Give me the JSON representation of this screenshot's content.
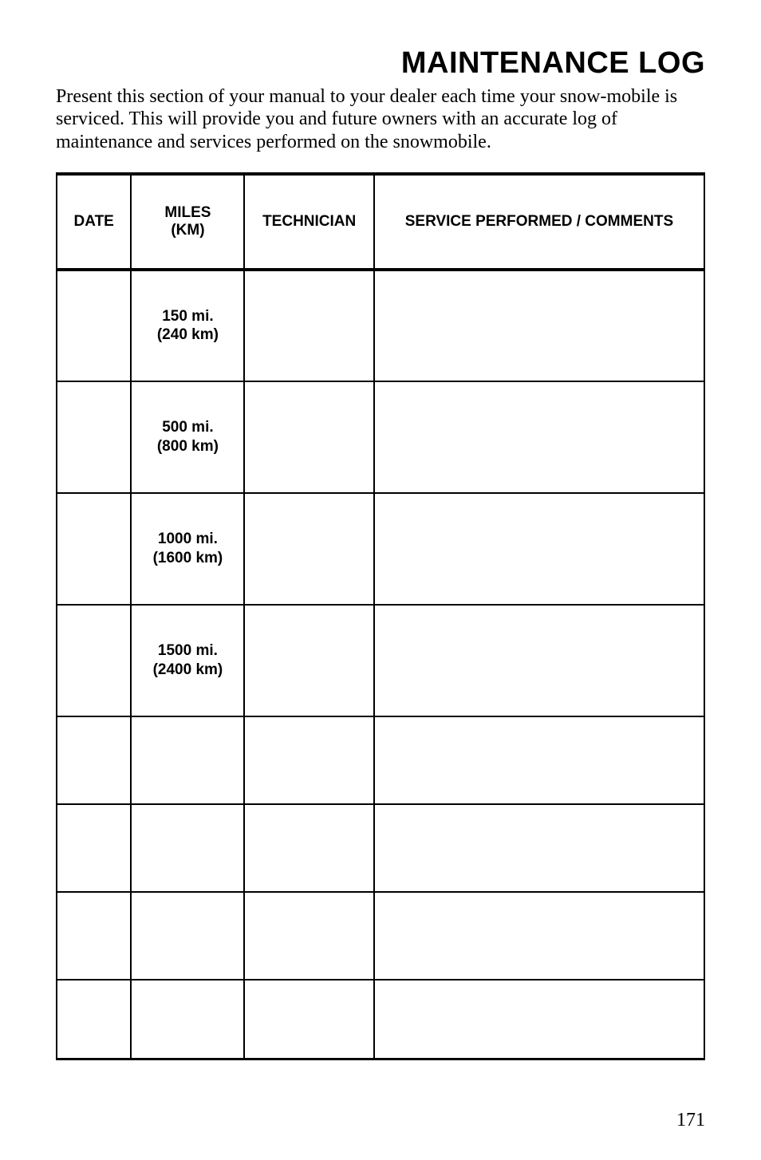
{
  "title": {
    "text": "MAINTENANCE LOG",
    "fontsize": 38
  },
  "intro": {
    "text": "Present this section of your manual to your dealer each time your snow-mobile is serviced. This will provide you and future owners with an accurate log of maintenance and services performed on the snowmobile.",
    "fontsize": 24
  },
  "table": {
    "header_fontsize": 19,
    "cell_fontsize": 19,
    "columns": [
      {
        "key": "date",
        "label": "DATE"
      },
      {
        "key": "miles",
        "label": "MILES (KM)"
      },
      {
        "key": "tech",
        "label": "TECHNICIAN"
      },
      {
        "key": "svc",
        "label": "SERVICE PERFORMED / COMMENTS"
      }
    ],
    "rows": [
      {
        "miles_line1": "150 mi.",
        "miles_line2": "(240 km)"
      },
      {
        "miles_line1": "500 mi.",
        "miles_line2": "(800 km)"
      },
      {
        "miles_line1": "1000 mi.",
        "miles_line2": "(1600 km)"
      },
      {
        "miles_line1": "1500 mi.",
        "miles_line2": "(2400 km)"
      },
      {
        "miles_line1": "",
        "miles_line2": ""
      },
      {
        "miles_line1": "",
        "miles_line2": ""
      },
      {
        "miles_line1": "",
        "miles_line2": ""
      },
      {
        "miles_line1": "",
        "miles_line2": ""
      }
    ]
  },
  "page_number": {
    "text": "171",
    "fontsize": 24
  },
  "colors": {
    "background": "#ffffff",
    "text": "#000000",
    "border": "#000000"
  }
}
